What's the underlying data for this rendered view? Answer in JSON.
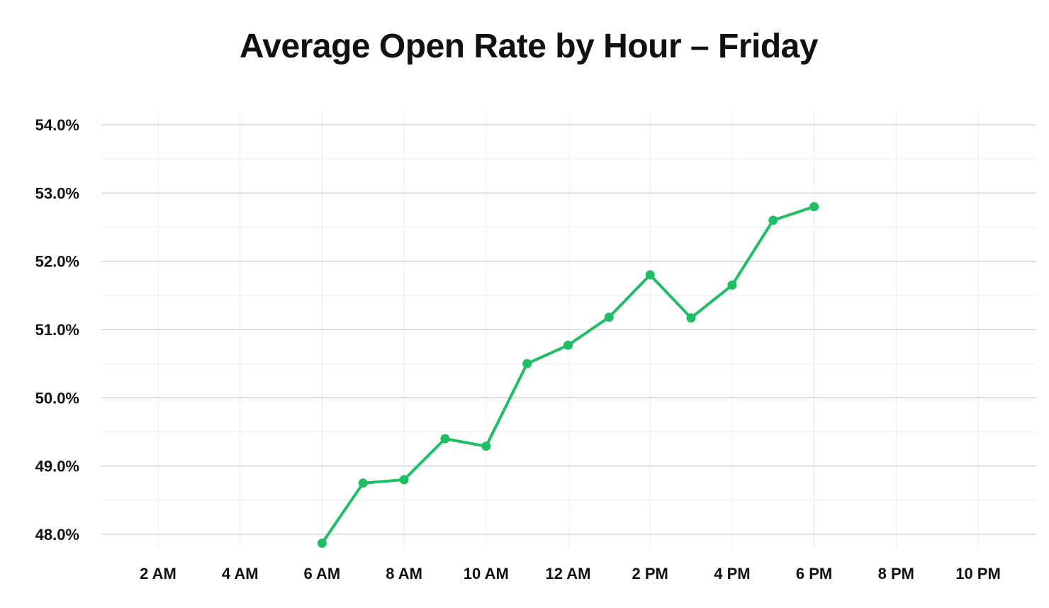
{
  "chart_data": {
    "type": "line",
    "title": "Average Open Rate by Hour – Friday",
    "xlabel": "",
    "ylabel": "",
    "x_ticks": [
      {
        "hour": 2,
        "label": "2 AM"
      },
      {
        "hour": 4,
        "label": "4 AM"
      },
      {
        "hour": 6,
        "label": "6 AM"
      },
      {
        "hour": 8,
        "label": "8 AM"
      },
      {
        "hour": 10,
        "label": "10 AM"
      },
      {
        "hour": 12,
        "label": "12 AM"
      },
      {
        "hour": 14,
        "label": "2 PM"
      },
      {
        "hour": 16,
        "label": "4 PM"
      },
      {
        "hour": 18,
        "label": "6 PM"
      },
      {
        "hour": 20,
        "label": "8 PM"
      },
      {
        "hour": 22,
        "label": "10 PM"
      }
    ],
    "y_ticks": [
      {
        "value": 54.0,
        "label": "54.0%"
      },
      {
        "value": 53.0,
        "label": "53.0%"
      },
      {
        "value": 52.0,
        "label": "52.0%"
      },
      {
        "value": 51.0,
        "label": "51.0%"
      },
      {
        "value": 50.0,
        "label": "50.0%"
      },
      {
        "value": 49.0,
        "label": "49.0%"
      },
      {
        "value": 48.0,
        "label": "48.0%"
      }
    ],
    "ylim": [
      48.0,
      54.0
    ],
    "grid": true,
    "series": [
      {
        "color": "#1dbf63",
        "points": [
          {
            "hour": 6,
            "value": 47.87
          },
          {
            "hour": 7,
            "value": 48.75
          },
          {
            "hour": 8,
            "value": 48.8
          },
          {
            "hour": 9,
            "value": 49.4
          },
          {
            "hour": 10,
            "value": 49.29
          },
          {
            "hour": 11,
            "value": 50.5
          },
          {
            "hour": 12,
            "value": 50.77
          },
          {
            "hour": 13,
            "value": 51.18
          },
          {
            "hour": 14,
            "value": 51.8
          },
          {
            "hour": 15,
            "value": 51.17
          },
          {
            "hour": 16,
            "value": 51.65
          },
          {
            "hour": 17,
            "value": 52.6
          },
          {
            "hour": 18,
            "value": 52.8
          }
        ]
      }
    ]
  }
}
